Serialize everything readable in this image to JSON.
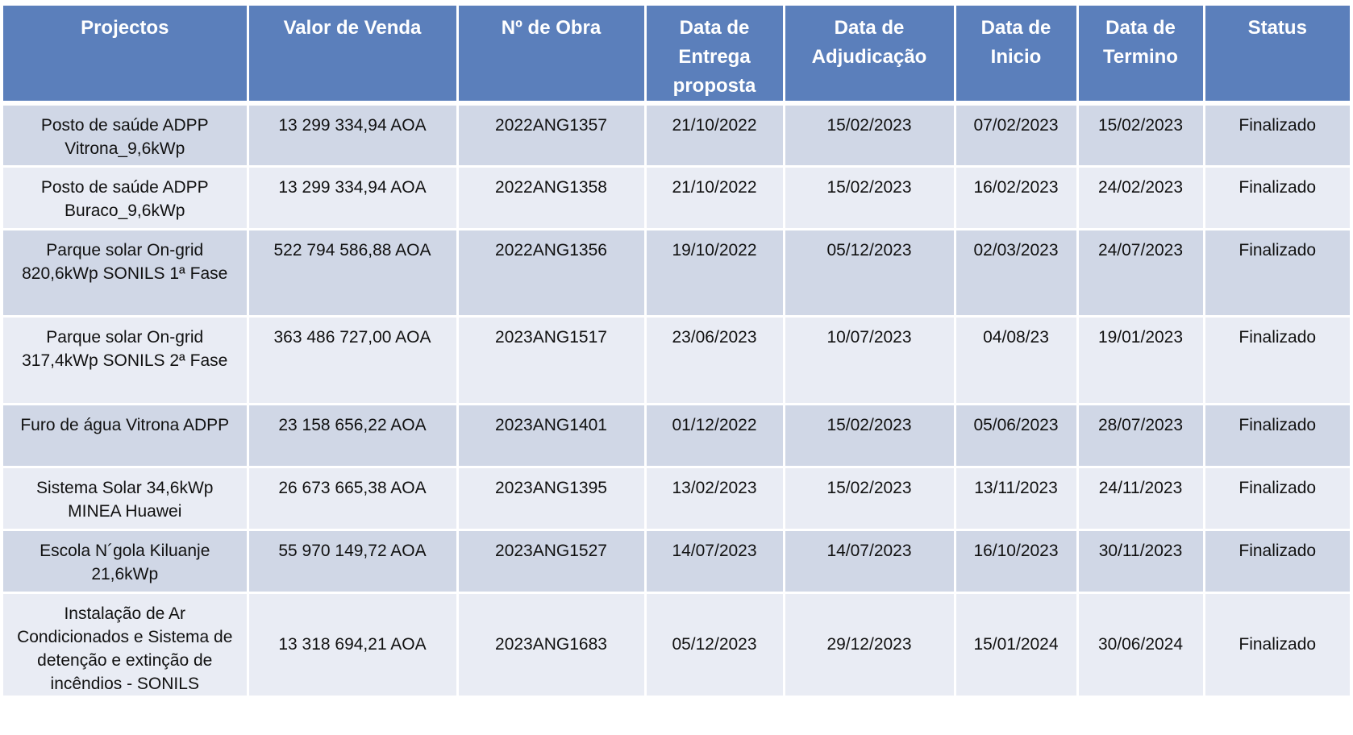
{
  "table": {
    "headers": [
      "Projectos",
      "Valor de Venda",
      "Nº de Obra",
      "Data de Entrega proposta",
      "Data de Adjudicação",
      "Data de Inicio",
      "Data de Termino",
      "Status"
    ],
    "rows": [
      [
        "Posto de saúde ADPP Vitrona_9,6kWp",
        "13 299 334,94 AOA",
        "2022ANG1357",
        "21/10/2022",
        "15/02/2023",
        "07/02/2023",
        "15/02/2023",
        "Finalizado"
      ],
      [
        "Posto de saúde ADPP Buraco_9,6kWp",
        "13 299 334,94 AOA",
        "2022ANG1358",
        "21/10/2022",
        "15/02/2023",
        "16/02/2023",
        "24/02/2023",
        "Finalizado"
      ],
      [
        "Parque solar On-grid 820,6kWp SONILS 1ª Fase",
        "522 794 586,88 AOA",
        "2022ANG1356",
        "19/10/2022",
        "05/12/2023",
        "02/03/2023",
        "24/07/2023",
        "Finalizado"
      ],
      [
        "Parque solar On-grid 317,4kWp SONILS 2ª Fase",
        "363 486 727,00 AOA",
        "2023ANG1517",
        "23/06/2023",
        "10/07/2023",
        "04/08/23",
        "19/01/2023",
        "Finalizado"
      ],
      [
        "Furo de água Vitrona  ADPP",
        "23 158 656,22 AOA",
        "2023ANG1401",
        "01/12/2022",
        "15/02/2023",
        "05/06/2023",
        "28/07/2023",
        "Finalizado"
      ],
      [
        "Sistema Solar 34,6kWp MINEA  Huawei",
        "26 673 665,38 AOA",
        "2023ANG1395",
        "13/02/2023",
        "15/02/2023",
        "13/11/2023",
        "24/11/2023",
        "Finalizado"
      ],
      [
        "Escola N´gola Kiluanje 21,6kWp",
        "55 970 149,72 AOA",
        "2023ANG1527",
        "14/07/2023",
        "14/07/2023",
        "16/10/2023",
        "30/11/2023",
        "Finalizado"
      ],
      [
        "Instalação de Ar Condicionados e Sistema de detenção e extinção de incêndios - SONILS",
        "13 318 694,21 AOA",
        "2023ANG1683",
        "05/12/2023",
        "29/12/2023",
        "15/01/2024",
        "30/06/2024",
        "Finalizado"
      ]
    ]
  },
  "colors": {
    "header_bg": "#5b7fbb",
    "row_odd_bg": "#d0d7e6",
    "row_even_bg": "#e9ecf4"
  }
}
